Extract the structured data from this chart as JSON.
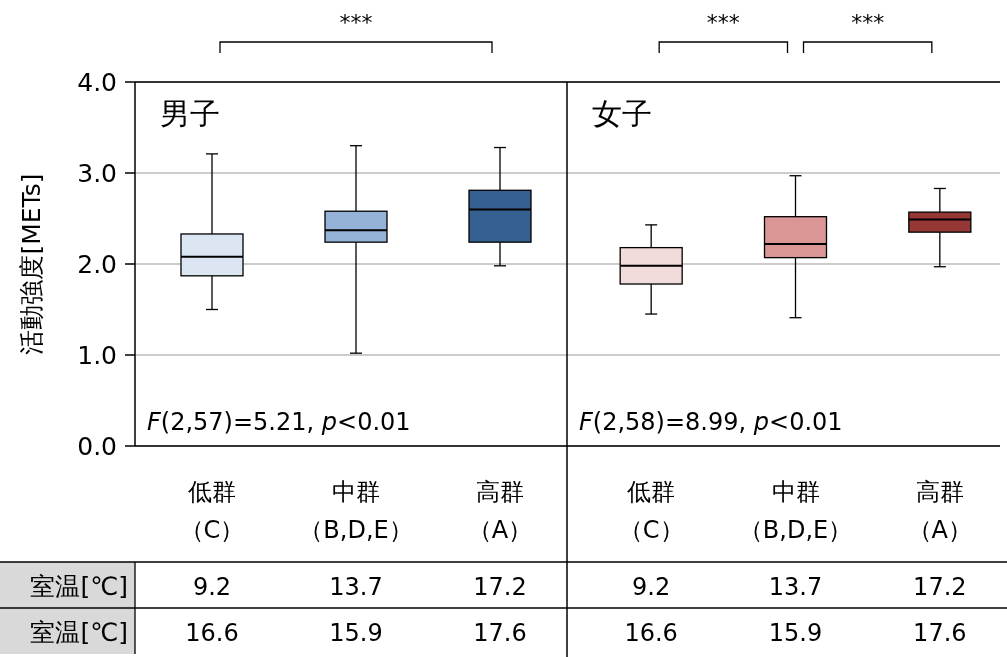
{
  "chart_data": [
    {
      "type": "box",
      "title": "男子",
      "ylabel": "活動強度[METs]",
      "categories": [
        "低群（C）",
        "中群（B,D,E）",
        "高群（A）"
      ],
      "colors": [
        "#dce6f2",
        "#95b3d7",
        "#366092"
      ],
      "boxes": [
        {
          "low": 1.5,
          "q1": 1.87,
          "median": 2.08,
          "q3": 2.33,
          "high": 3.21
        },
        {
          "low": 1.02,
          "q1": 2.24,
          "median": 2.37,
          "q3": 2.58,
          "high": 3.3
        },
        {
          "low": 1.98,
          "q1": 2.24,
          "median": 2.6,
          "q3": 2.81,
          "high": 3.28
        }
      ],
      "ylim": [
        0,
        4
      ],
      "yticks": [
        {
          "value": 0,
          "label": "0.0"
        },
        {
          "value": 1,
          "label": "1.0"
        },
        {
          "value": 2,
          "label": "2.0"
        },
        {
          "value": 3,
          "label": "3.0"
        },
        {
          "value": 4,
          "label": "4.0"
        }
      ],
      "grid": "y",
      "annotations": [
        "*F*(2,57)=5.21, *p*<0.01",
        "***",
        "室温[℃]",
        "9.2",
        "13.7",
        "17.2",
        "室温[℃]",
        "16.6",
        "15.9",
        "17.6"
      ]
    },
    {
      "type": "box",
      "title": "女子",
      "categories": [
        "低群（C）",
        "中群（B,D,E）",
        "高群（A）"
      ],
      "colors": [
        "#f2dcdb",
        "#d99694",
        "#953735"
      ],
      "boxes": [
        {
          "low": 1.45,
          "q1": 1.78,
          "median": 1.98,
          "q3": 2.18,
          "high": 2.43
        },
        {
          "low": 1.41,
          "q1": 2.07,
          "median": 2.22,
          "q3": 2.52,
          "high": 2.97
        },
        {
          "low": 1.97,
          "q1": 2.35,
          "median": 2.49,
          "q3": 2.57,
          "high": 2.83
        }
      ],
      "ylim": [
        0,
        4
      ],
      "yticks": [
        0,
        1,
        2,
        3,
        4
      ],
      "grid": "y",
      "tick_labels": "x",
      "annotations": [
        "*F*(2,58)=8.99, *p*<0.01",
        "***",
        "***",
        "9.2",
        "13.7",
        "17.2",
        "16.6",
        "15.9",
        "17.6"
      ]
    }
  ]
}
